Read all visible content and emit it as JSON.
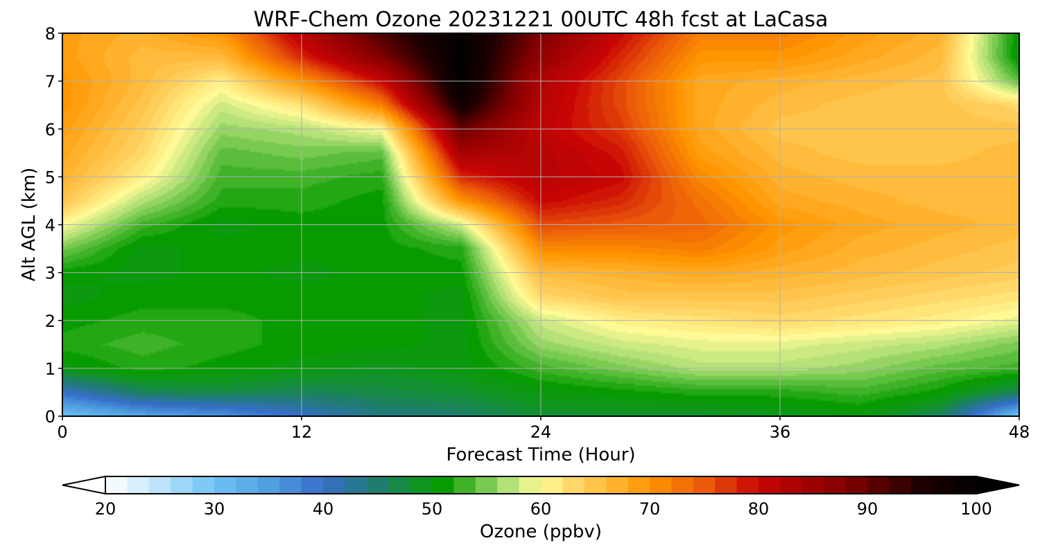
{
  "chart_data": {
    "type": "heatmap",
    "title": "WRF-Chem Ozone  20231221 00UTC 48h fcst at LaCasa",
    "xlabel": "Forecast Time (Hour)",
    "ylabel": "Alt AGL (km)",
    "xlim": [
      0,
      48
    ],
    "ylim": [
      0,
      8
    ],
    "xticks": [
      0,
      12,
      24,
      36,
      48
    ],
    "yticks": [
      0,
      1,
      2,
      3,
      4,
      5,
      6,
      7,
      8
    ],
    "grid": true,
    "x": [
      0,
      4,
      8,
      12,
      16,
      20,
      24,
      28,
      32,
      36,
      40,
      44,
      48
    ],
    "y": [
      0,
      0.5,
      1,
      1.5,
      2,
      2.5,
      3,
      3.5,
      4,
      4.5,
      5,
      5.5,
      6,
      6.5,
      7,
      7.5,
      8
    ],
    "z": [
      [
        30,
        34,
        36,
        40,
        44,
        45,
        48,
        48,
        48,
        49,
        50,
        46,
        30
      ],
      [
        40,
        46,
        47,
        46,
        47,
        48,
        50,
        51,
        52,
        52,
        53,
        51,
        46
      ],
      [
        50,
        52,
        51,
        50,
        49,
        50,
        53,
        55,
        57,
        57,
        56,
        54,
        53
      ],
      [
        52,
        53,
        52,
        51,
        51,
        50,
        56,
        58,
        59,
        59,
        58,
        57,
        55
      ],
      [
        51,
        52,
        52,
        51,
        51,
        50,
        58,
        61,
        62,
        63,
        62,
        61,
        59
      ],
      [
        50,
        51,
        51,
        51,
        51,
        50,
        63,
        65,
        65,
        65,
        64,
        63,
        62
      ],
      [
        51,
        50,
        51,
        50,
        51,
        51,
        66,
        67,
        68,
        67,
        66,
        65,
        64
      ],
      [
        55,
        50,
        51,
        51,
        51,
        52,
        71,
        71,
        72,
        69,
        67,
        66,
        65
      ],
      [
        60,
        53,
        50,
        51,
        51,
        58,
        76,
        75,
        74,
        70,
        68,
        67,
        66
      ],
      [
        65,
        57,
        52,
        52,
        51,
        70,
        80,
        78,
        73,
        68,
        67,
        66,
        66
      ],
      [
        67,
        61,
        53,
        53,
        52,
        78,
        82,
        80,
        71,
        67,
        66,
        66,
        66
      ],
      [
        68,
        63,
        54,
        55,
        54,
        84,
        82,
        79,
        69,
        66,
        65,
        65,
        66
      ],
      [
        69,
        64,
        56,
        57,
        60,
        90,
        81,
        77,
        68,
        65,
        65,
        65,
        65
      ],
      [
        70,
        65,
        58,
        62,
        72,
        97,
        82,
        76,
        68,
        66,
        65,
        65,
        63
      ],
      [
        70,
        66,
        61,
        70,
        80,
        100,
        83,
        76,
        68,
        67,
        66,
        65,
        54
      ],
      [
        69,
        66,
        66,
        78,
        88,
        100,
        86,
        78,
        70,
        70,
        68,
        66,
        50
      ],
      [
        69,
        67,
        70,
        82,
        92,
        100,
        88,
        80,
        72,
        72,
        69,
        67,
        50
      ]
    ],
    "colorbar": {
      "label": "Ozone  (ppbv)",
      "min": 20,
      "max": 100,
      "ticks": [
        20,
        30,
        40,
        50,
        60,
        70,
        80,
        90,
        100
      ],
      "extend": "both"
    }
  }
}
